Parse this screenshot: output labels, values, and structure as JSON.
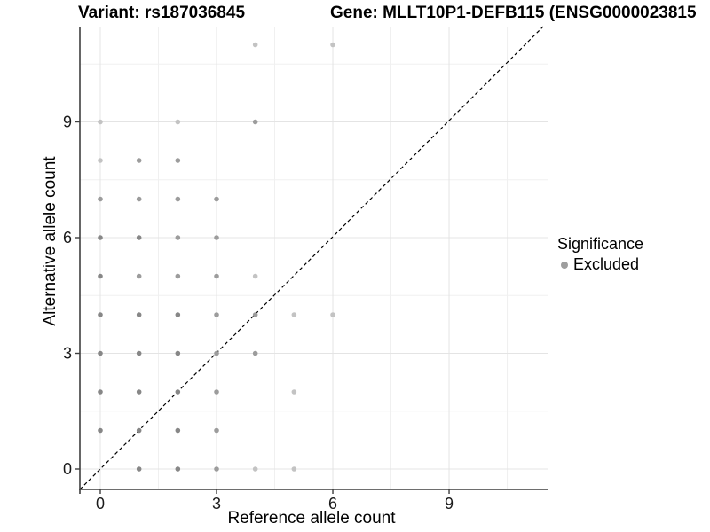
{
  "header": {
    "title_left": "Variant: rs187036845",
    "title_right": "Gene: MLLT10P1-DEFB115 (ENSG0000023815"
  },
  "legend": {
    "title": "Significance",
    "items": [
      {
        "label": "Excluded",
        "color": "#9e9e9e"
      }
    ]
  },
  "chart_data": {
    "type": "scatter",
    "xlabel": "Reference allele count",
    "ylabel": "Alternative allele count",
    "x_ticks": [
      0,
      3,
      6,
      9
    ],
    "y_ticks": [
      0,
      3,
      6,
      9
    ],
    "x_range": [
      -0.5,
      11.5
    ],
    "y_range": [
      -0.5,
      11.5
    ],
    "grid": {
      "x_major": [
        0,
        3,
        6,
        9
      ],
      "x_minor": [
        1.5,
        4.5,
        7.5,
        10.5
      ],
      "y_major": [
        0,
        3,
        6,
        9
      ],
      "y_minor": [
        1.5,
        4.5,
        7.5,
        10.5
      ],
      "major_color": "#e4e4e4",
      "minor_color": "#f0f0f0"
    },
    "identity_line": {
      "show": true,
      "style": "dashed",
      "color": "#000000"
    },
    "axis_line_color": "#3f3f3f",
    "shade_colors": {
      "dark": "#878787",
      "mid": "#9c9c9c",
      "light": "#c3c3c3"
    },
    "points": [
      {
        "x": 0,
        "y": 1,
        "shade": "dark"
      },
      {
        "x": 0,
        "y": 2,
        "shade": "dark"
      },
      {
        "x": 0,
        "y": 3,
        "shade": "dark"
      },
      {
        "x": 0,
        "y": 4,
        "shade": "dark"
      },
      {
        "x": 0,
        "y": 5,
        "shade": "dark"
      },
      {
        "x": 0,
        "y": 6,
        "shade": "dark"
      },
      {
        "x": 0,
        "y": 7,
        "shade": "mid"
      },
      {
        "x": 0,
        "y": 8,
        "shade": "light"
      },
      {
        "x": 0,
        "y": 9,
        "shade": "light"
      },
      {
        "x": 1,
        "y": 0,
        "shade": "dark"
      },
      {
        "x": 1,
        "y": 1,
        "shade": "dark"
      },
      {
        "x": 1,
        "y": 2,
        "shade": "dark"
      },
      {
        "x": 1,
        "y": 3,
        "shade": "dark"
      },
      {
        "x": 1,
        "y": 4,
        "shade": "dark"
      },
      {
        "x": 1,
        "y": 5,
        "shade": "mid"
      },
      {
        "x": 1,
        "y": 6,
        "shade": "dark"
      },
      {
        "x": 1,
        "y": 7,
        "shade": "mid"
      },
      {
        "x": 1,
        "y": 8,
        "shade": "mid"
      },
      {
        "x": 2,
        "y": 0,
        "shade": "dark"
      },
      {
        "x": 2,
        "y": 1,
        "shade": "dark"
      },
      {
        "x": 2,
        "y": 2,
        "shade": "dark"
      },
      {
        "x": 2,
        "y": 3,
        "shade": "dark"
      },
      {
        "x": 2,
        "y": 4,
        "shade": "dark"
      },
      {
        "x": 2,
        "y": 5,
        "shade": "mid"
      },
      {
        "x": 2,
        "y": 6,
        "shade": "mid"
      },
      {
        "x": 2,
        "y": 7,
        "shade": "mid"
      },
      {
        "x": 2,
        "y": 8,
        "shade": "mid"
      },
      {
        "x": 2,
        "y": 9,
        "shade": "light"
      },
      {
        "x": 3,
        "y": 0,
        "shade": "mid"
      },
      {
        "x": 3,
        "y": 1,
        "shade": "mid"
      },
      {
        "x": 3,
        "y": 2,
        "shade": "mid"
      },
      {
        "x": 3,
        "y": 3,
        "shade": "mid"
      },
      {
        "x": 3,
        "y": 4,
        "shade": "mid"
      },
      {
        "x": 3,
        "y": 5,
        "shade": "mid"
      },
      {
        "x": 3,
        "y": 6,
        "shade": "mid"
      },
      {
        "x": 3,
        "y": 7,
        "shade": "mid"
      },
      {
        "x": 4,
        "y": 0,
        "shade": "light"
      },
      {
        "x": 4,
        "y": 3,
        "shade": "mid"
      },
      {
        "x": 4,
        "y": 4,
        "shade": "mid"
      },
      {
        "x": 4,
        "y": 5,
        "shade": "light"
      },
      {
        "x": 4,
        "y": 9,
        "shade": "mid"
      },
      {
        "x": 4,
        "y": 11,
        "shade": "light"
      },
      {
        "x": 5,
        "y": 0,
        "shade": "light"
      },
      {
        "x": 5,
        "y": 2,
        "shade": "light"
      },
      {
        "x": 5,
        "y": 4,
        "shade": "light"
      },
      {
        "x": 6,
        "y": 4,
        "shade": "light"
      },
      {
        "x": 6,
        "y": 11,
        "shade": "light"
      }
    ]
  }
}
